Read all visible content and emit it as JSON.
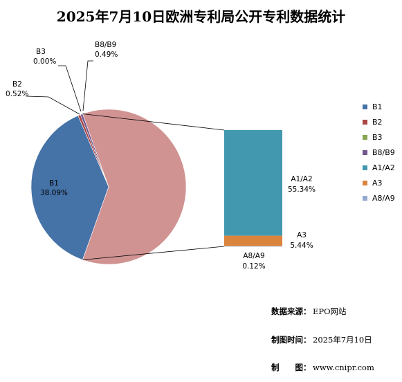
{
  "title": "2025年7月10日欧洲专利局公开专利数据统计",
  "chart_data": {
    "type": "pie",
    "subtype": "pie-of-bar",
    "pie": [
      {
        "label": "B1",
        "value_text": "38.09%",
        "value": 38.09,
        "color": "#4572A7"
      },
      {
        "label": "B2",
        "value_text": "0.52%",
        "value": 0.52,
        "color": "#AA4643"
      },
      {
        "label": "B3",
        "value_text": "0.00%",
        "value": 0.0,
        "color": "#89A54E"
      },
      {
        "label": "B8/B9",
        "value_text": "0.49%",
        "value": 0.49,
        "color": "#71588F"
      },
      {
        "label": "Other",
        "value_text": "",
        "value": 60.9,
        "color": "#D09392"
      }
    ],
    "bar": [
      {
        "label": "A1/A2",
        "value_text": "55.34%",
        "value": 55.34,
        "color": "#4198AF"
      },
      {
        "label": "A3",
        "value_text": "5.44%",
        "value": 5.44,
        "color": "#DB843D"
      },
      {
        "label": "A8/A9",
        "value_text": "0.12%",
        "value": 0.12,
        "color": "#93A9CF"
      }
    ],
    "legend": [
      "B1",
      "B2",
      "B3",
      "B8/B9",
      "A1/A2",
      "A3",
      "A8/A9"
    ],
    "legend_colors": [
      "#4572A7",
      "#AA4643",
      "#89A54E",
      "#71588F",
      "#4198AF",
      "#DB843D",
      "#93A9CF"
    ],
    "legend_position": "right"
  },
  "footer": {
    "rows": [
      {
        "label": "数据来源：",
        "value": "EPO网站"
      },
      {
        "label": "制图时间：",
        "value": "2025年7月10日"
      },
      {
        "label": "制　　图：",
        "value": "www.cnipr.com"
      }
    ]
  }
}
